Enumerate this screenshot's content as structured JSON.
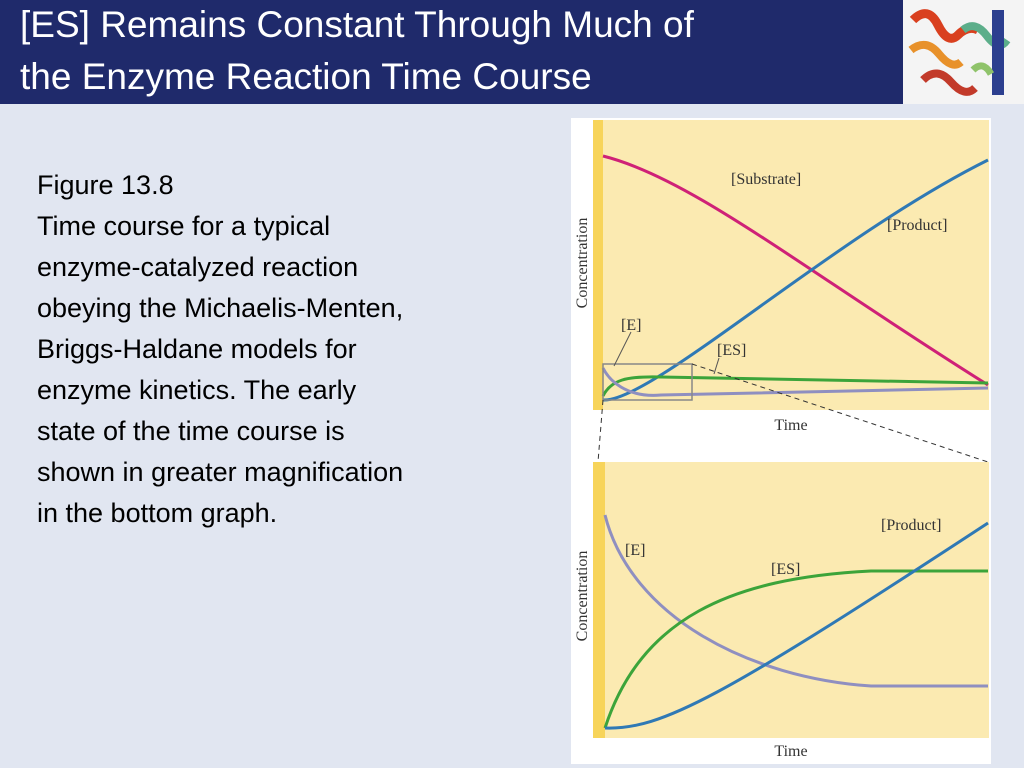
{
  "header": {
    "title_lines": [
      "[ES] Remains Constant Through Much of",
      "the Enzyme Reaction Time Course"
    ]
  },
  "caption": {
    "lines": [
      "Figure 13.8",
      "Time course for a typical",
      "enzyme-catalyzed reaction",
      "obeying the Michaelis-Menten,",
      "Briggs-Haldane models for",
      "enzyme kinetics.  The early",
      "state of the time course is",
      "shown in greater magnification",
      "in the bottom graph."
    ]
  },
  "figure": {
    "top": {
      "y_label": "Concentration",
      "x_label": "Time",
      "substrate": "[Substrate]",
      "product": "[Product]",
      "enzyme": "[E]",
      "complex": "[ES]"
    },
    "bottom": {
      "y_label": "Concentration",
      "x_label": "Time",
      "product": "[Product]",
      "enzyme": "[E]",
      "complex": "[ES]"
    }
  }
}
